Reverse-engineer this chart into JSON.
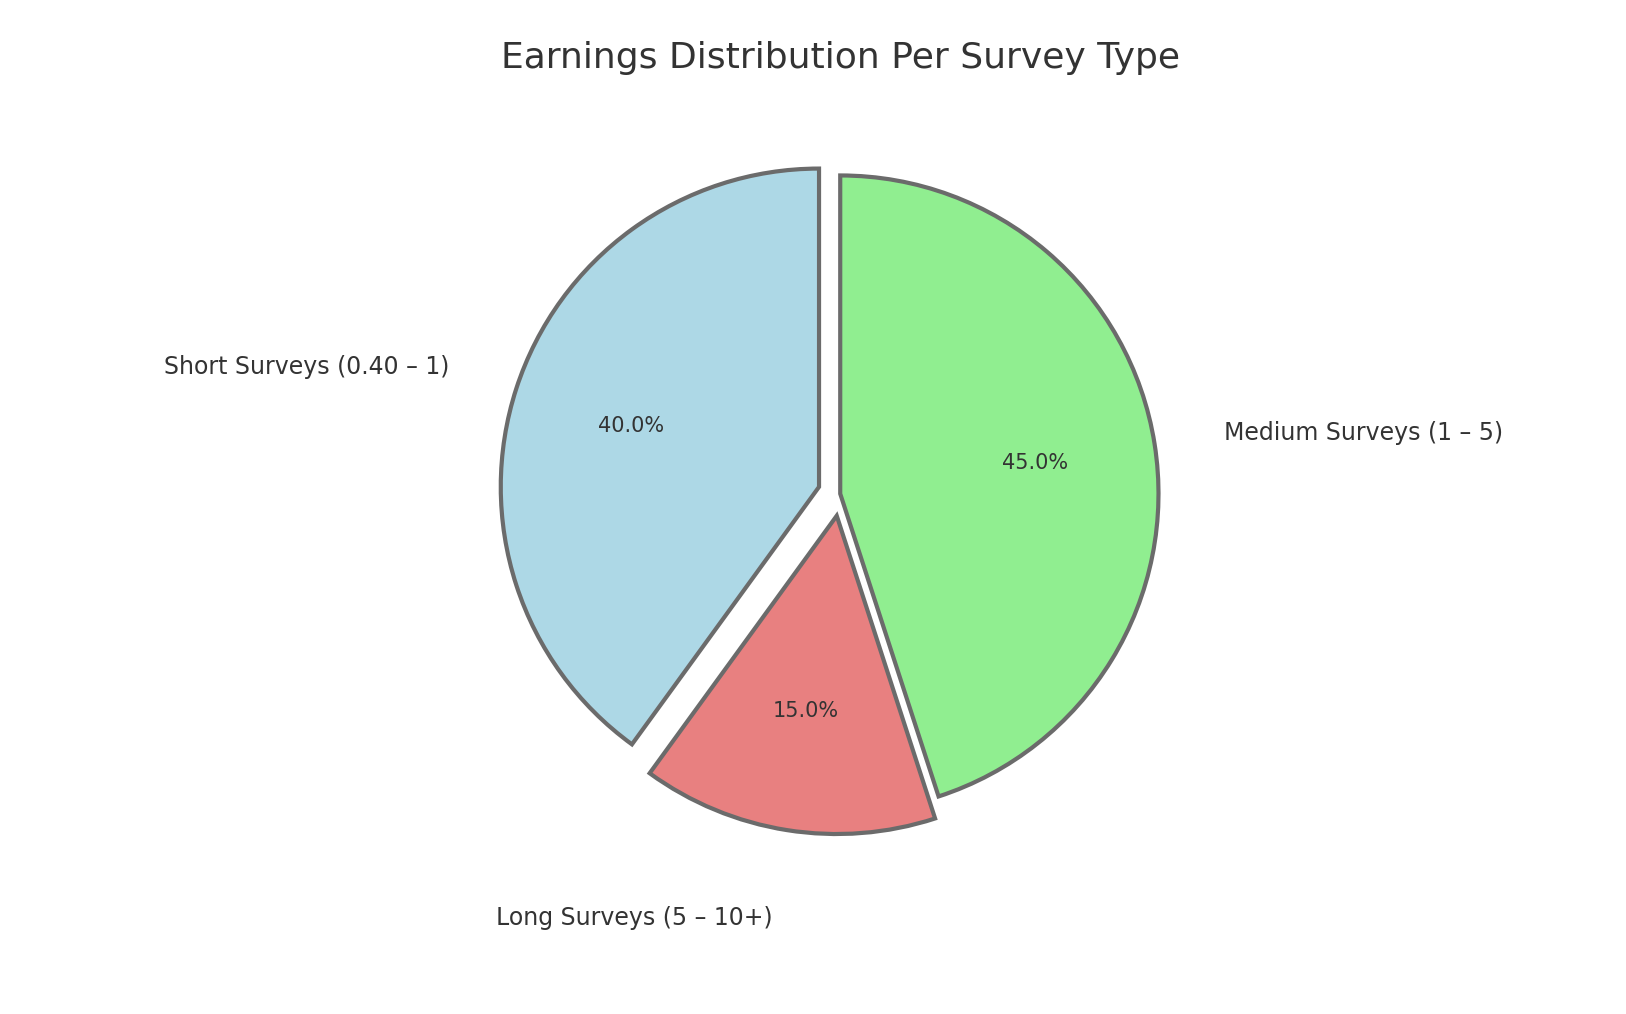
{
  "title": "Earnings Distribution Per Survey Type",
  "title_fontsize": 26,
  "slices": [
    {
      "label": "Medium Surveys (1 – 5)",
      "value": 45.0,
      "color": "#90EE90",
      "explode": 0.0
    },
    {
      "label": "Long Surveys (5 – 10+)",
      "value": 15.0,
      "color": "#E88080",
      "explode": 0.07
    },
    {
      "label": "Short Surveys (0.40 – 1)",
      "value": 40.0,
      "color": "#ADD8E6",
      "explode": 0.07
    }
  ],
  "wedge_edge_color": "#6b6b6b",
  "wedge_edge_width": 3.0,
  "autopct_fontsize": 15,
  "label_fontsize": 17,
  "background_color": "#ffffff",
  "startangle": 90,
  "pctdistance": 0.62
}
